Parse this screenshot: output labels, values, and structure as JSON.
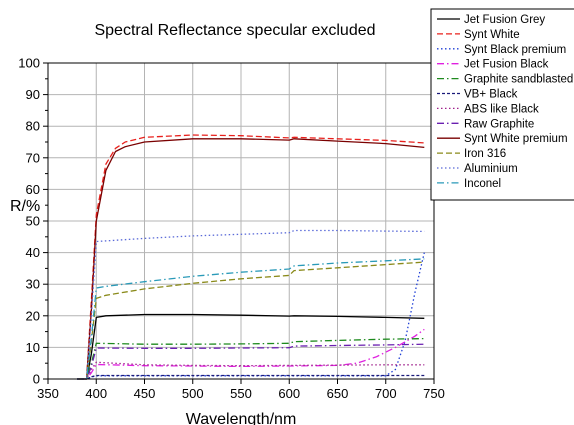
{
  "chart_data": {
    "type": "line",
    "title": "Spectral Reflectance specular excluded",
    "xlabel": "Wavelength/nm",
    "ylabel": "R/%",
    "xlim": [
      350,
      750
    ],
    "ylim": [
      0,
      100
    ],
    "xticks": [
      350,
      400,
      450,
      500,
      550,
      600,
      650,
      700,
      750
    ],
    "yticks": [
      0,
      10,
      20,
      30,
      40,
      50,
      60,
      70,
      80,
      90,
      100
    ],
    "grid": true,
    "legend_position": "top-right",
    "series": [
      {
        "name": "Jet Fusion Grey",
        "color": "#000000",
        "dash": "solid",
        "x": [
          380,
          390,
          395,
          400,
          410,
          450,
          500,
          550,
          600,
          605,
          650,
          700,
          740
        ],
        "y": [
          0,
          0,
          8,
          19.5,
          20,
          20.4,
          20.4,
          20.2,
          19.9,
          20,
          19.8,
          19.5,
          19.2
        ]
      },
      {
        "name": "Synt White",
        "color": "#e8201c",
        "dash": "dashed",
        "x": [
          380,
          390,
          395,
          400,
          410,
          420,
          430,
          450,
          500,
          550,
          600,
          605,
          650,
          700,
          740
        ],
        "y": [
          0,
          0,
          25,
          52,
          68,
          73,
          75,
          76.5,
          77.2,
          77,
          76.3,
          76.5,
          76,
          75.5,
          74.7
        ]
      },
      {
        "name": "Synt Black premium",
        "color": "#1f3fd6",
        "dash": "dotted",
        "x": [
          380,
          390,
          395,
          400,
          450,
          500,
          550,
          600,
          650,
          700,
          710,
          720,
          730,
          740
        ],
        "y": [
          0,
          0,
          0.6,
          1,
          1,
          1,
          1,
          1,
          1,
          1,
          3,
          12,
          27,
          40
        ]
      },
      {
        "name": "Jet Fusion Black",
        "color": "#e020e0",
        "dash": "dashdot",
        "x": [
          380,
          390,
          395,
          400,
          450,
          500,
          550,
          600,
          650,
          670,
          690,
          710,
          730,
          740
        ],
        "y": [
          0,
          0,
          2,
          4.6,
          4.2,
          4.1,
          4,
          4.1,
          4.3,
          5,
          7,
          10,
          13.5,
          15.7
        ]
      },
      {
        "name": "Graphite sandblasted",
        "color": "#1e8a1e",
        "dash": "dashdot",
        "x": [
          380,
          390,
          395,
          400,
          450,
          500,
          550,
          600,
          605,
          650,
          700,
          740
        ],
        "y": [
          0,
          0,
          5,
          11.3,
          11,
          11,
          11.1,
          11.3,
          11.8,
          12.2,
          12.6,
          12.8
        ]
      },
      {
        "name": "VB+ Black",
        "color": "#1a1a7a",
        "dash": "shortdash",
        "x": [
          380,
          390,
          395,
          400,
          450,
          500,
          550,
          600,
          650,
          700,
          740
        ],
        "y": [
          0,
          0,
          0.7,
          1.1,
          1.1,
          1.1,
          1.1,
          1.1,
          1.1,
          1.1,
          1.1
        ]
      },
      {
        "name": "ABS like Black",
        "color": "#a0208c",
        "dash": "dotted",
        "x": [
          380,
          390,
          395,
          400,
          450,
          500,
          550,
          600,
          650,
          700,
          740
        ],
        "y": [
          0,
          0,
          3,
          5.3,
          4.5,
          4.3,
          4.2,
          4.3,
          4.4,
          4.5,
          4.5
        ]
      },
      {
        "name": "Raw Graphite",
        "color": "#6a1fb0",
        "dash": "dashdot",
        "x": [
          380,
          390,
          395,
          400,
          450,
          500,
          550,
          600,
          605,
          650,
          700,
          740
        ],
        "y": [
          0,
          0,
          4,
          9.8,
          9.7,
          9.7,
          9.8,
          9.9,
          10.4,
          10.6,
          10.8,
          11
        ]
      },
      {
        "name": "Synt White premium",
        "color": "#7a0000",
        "dash": "solid",
        "x": [
          380,
          390,
          395,
          400,
          410,
          420,
          430,
          450,
          500,
          550,
          600,
          605,
          650,
          700,
          740
        ],
        "y": [
          0,
          0,
          22,
          50,
          66,
          72,
          73.5,
          75,
          76,
          76,
          75.6,
          76,
          75.3,
          74.5,
          73.3
        ]
      },
      {
        "name": "Iron 316",
        "color": "#8a8a1a",
        "dash": "dashed",
        "x": [
          380,
          390,
          395,
          400,
          410,
          450,
          500,
          550,
          600,
          605,
          650,
          700,
          740
        ],
        "y": [
          0,
          0,
          12,
          25.5,
          26.5,
          28.5,
          30.3,
          31.7,
          32.8,
          34.3,
          35.2,
          36.2,
          37
        ]
      },
      {
        "name": "Aluminium",
        "color": "#5a6ad8",
        "dash": "dotted",
        "x": [
          380,
          390,
          395,
          400,
          450,
          500,
          550,
          600,
          605,
          650,
          700,
          740
        ],
        "y": [
          0,
          0,
          20,
          43.5,
          44.5,
          45.3,
          45.8,
          46.3,
          47,
          47,
          46.8,
          46.7
        ]
      },
      {
        "name": "Inconel",
        "color": "#2a9ab8",
        "dash": "dashdot",
        "x": [
          380,
          390,
          395,
          400,
          410,
          450,
          500,
          550,
          600,
          605,
          650,
          700,
          740
        ],
        "y": [
          0,
          0,
          13,
          28.8,
          29.3,
          30.8,
          32.5,
          33.8,
          34.8,
          35.8,
          36.7,
          37.4,
          38
        ]
      }
    ]
  }
}
